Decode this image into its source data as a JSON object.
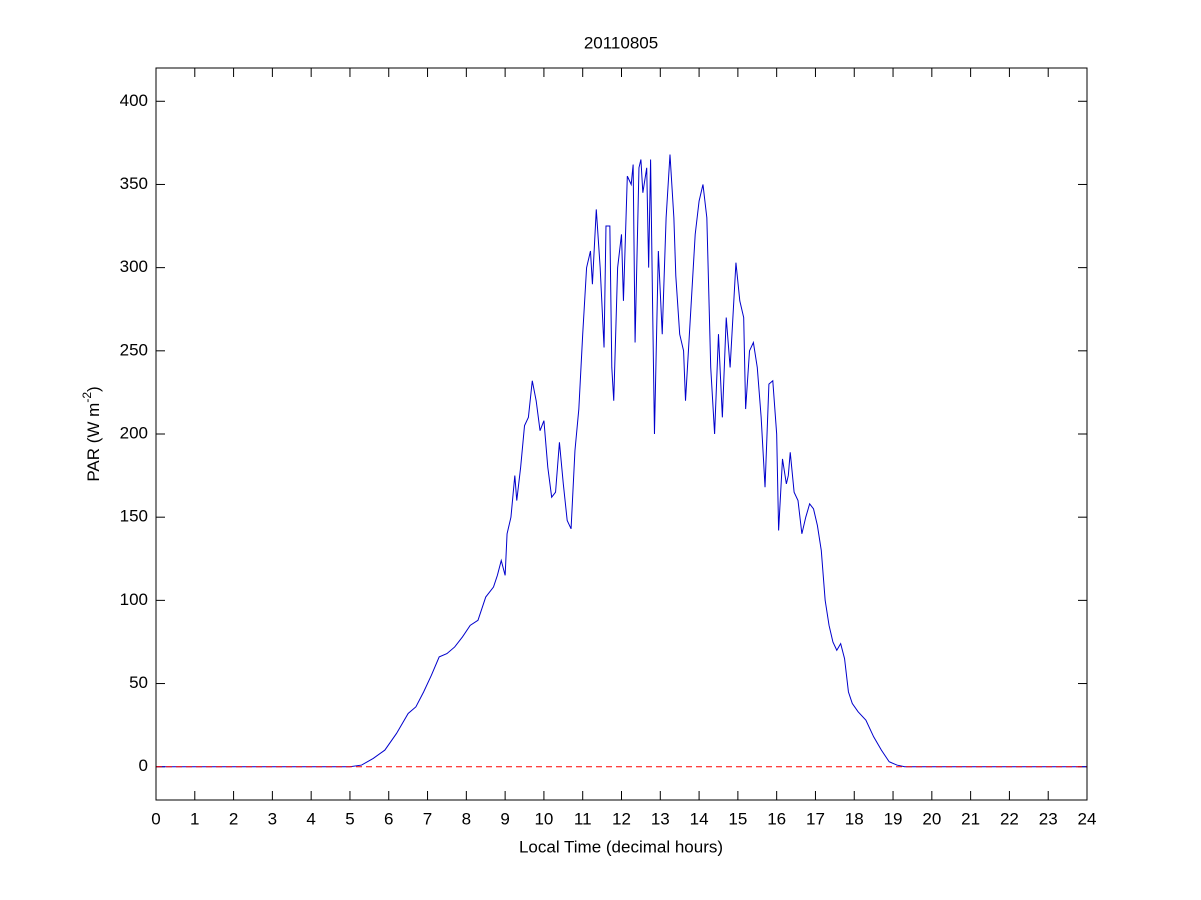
{
  "chart_data": {
    "type": "line",
    "title": "20110805",
    "xlabel": "Local Time (decimal hours)",
    "ylabel": {
      "text": "PAR (W m",
      "superscript": "-2",
      "suffix": ")"
    },
    "color": "#0000cc",
    "x": [
      0,
      5.0,
      5.3,
      5.6,
      5.9,
      6.2,
      6.5,
      6.7,
      6.9,
      7.1,
      7.3,
      7.5,
      7.7,
      7.9,
      8.1,
      8.3,
      8.4,
      8.5,
      8.7,
      8.8,
      8.9,
      9.0,
      9.05,
      9.15,
      9.25,
      9.3,
      9.4,
      9.5,
      9.6,
      9.7,
      9.8,
      9.9,
      10.0,
      10.1,
      10.2,
      10.3,
      10.4,
      10.5,
      10.6,
      10.7,
      10.8,
      10.9,
      11.0,
      11.1,
      11.2,
      11.25,
      11.35,
      11.45,
      11.55,
      11.6,
      11.7,
      11.75,
      11.8,
      11.9,
      12.0,
      12.05,
      12.15,
      12.25,
      12.3,
      12.35,
      12.45,
      12.5,
      12.55,
      12.65,
      12.7,
      12.75,
      12.8,
      12.85,
      12.95,
      13.05,
      13.15,
      13.25,
      13.35,
      13.4,
      13.5,
      13.6,
      13.65,
      13.8,
      13.9,
      14.0,
      14.1,
      14.2,
      14.3,
      14.4,
      14.5,
      14.6,
      14.7,
      14.8,
      14.95,
      15.05,
      15.15,
      15.2,
      15.3,
      15.4,
      15.5,
      15.6,
      15.7,
      15.8,
      15.9,
      16.0,
      16.05,
      16.15,
      16.25,
      16.3,
      16.35,
      16.45,
      16.55,
      16.65,
      16.75,
      16.85,
      16.95,
      17.05,
      17.15,
      17.25,
      17.35,
      17.45,
      17.55,
      17.65,
      17.75,
      17.85,
      17.95,
      18.1,
      18.3,
      18.5,
      18.7,
      18.9,
      19.1,
      19.3,
      24
    ],
    "values": [
      0,
      0,
      1,
      5,
      10,
      20,
      32,
      36,
      45,
      55,
      66,
      68,
      72,
      78,
      85,
      88,
      95,
      102,
      108,
      115,
      124,
      115,
      140,
      150,
      175,
      160,
      180,
      205,
      210,
      232,
      220,
      202,
      208,
      180,
      162,
      165,
      195,
      170,
      148,
      143,
      190,
      215,
      260,
      300,
      310,
      290,
      335,
      300,
      252,
      325,
      325,
      240,
      220,
      300,
      320,
      280,
      355,
      350,
      362,
      255,
      360,
      365,
      345,
      360,
      300,
      365,
      280,
      200,
      310,
      260,
      330,
      368,
      330,
      295,
      260,
      250,
      220,
      280,
      320,
      340,
      350,
      330,
      240,
      200,
      260,
      210,
      270,
      240,
      303,
      280,
      270,
      215,
      250,
      255,
      240,
      210,
      168,
      230,
      232,
      200,
      142,
      185,
      170,
      175,
      189,
      165,
      160,
      140,
      150,
      158,
      155,
      145,
      130,
      100,
      85,
      75,
      70,
      74,
      65,
      45,
      38,
      33,
      28,
      18,
      10,
      3,
      1,
      0,
      0
    ],
    "reference_line": {
      "value": 0,
      "color": "#ff0000",
      "style": "dashed"
    },
    "xlim": [
      0,
      24
    ],
    "xticks": [
      0,
      1,
      2,
      3,
      4,
      5,
      6,
      7,
      8,
      9,
      10,
      11,
      12,
      13,
      14,
      15,
      16,
      17,
      18,
      19,
      20,
      21,
      22,
      23,
      24
    ],
    "ylim": [
      -20,
      420
    ],
    "yticks": [
      0,
      50,
      100,
      150,
      200,
      250,
      300,
      350,
      400
    ],
    "grid": false
  }
}
